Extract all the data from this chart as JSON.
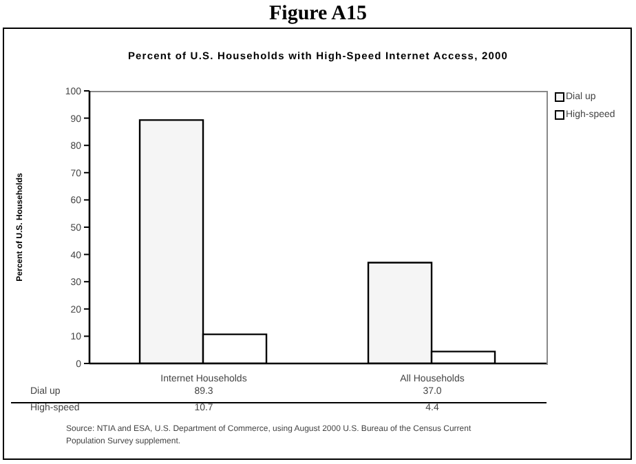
{
  "chart_data": {
    "type": "bar",
    "title": "Figure A15",
    "subtitle": "Percent of U.S. Households with High-Speed Internet Access, 2000",
    "ylabel": "Percent of U.S. Households",
    "categories": [
      "Internet Households",
      "All Households"
    ],
    "series": [
      {
        "name": "Dial up",
        "color": "#f5f5f5",
        "values": [
          89.3,
          37.0
        ],
        "value_labels": [
          "89.3",
          "37.0"
        ]
      },
      {
        "name": "High-speed",
        "color": "#ffffff",
        "values": [
          10.7,
          4.4
        ],
        "value_labels": [
          "10.7",
          "4.4"
        ]
      }
    ],
    "ylim": [
      0,
      100
    ],
    "yticks": [
      0,
      10,
      20,
      30,
      40,
      50,
      60,
      70,
      80,
      90,
      100
    ],
    "grid": false,
    "legend": "top right",
    "annotations": [
      "Source: NTIA and ESA, U.S. Department of Commerce, using August 2000 U.S. Bureau of the Census Current Population Survey supplement."
    ]
  }
}
